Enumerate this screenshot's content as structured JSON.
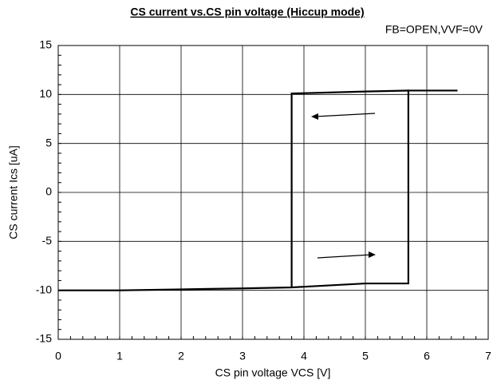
{
  "chart_data": {
    "type": "line",
    "title": "CS current vs.CS pin voltage (Hiccup mode)",
    "subtitle": "FB=OPEN,VVF=0V",
    "x_label": "CS pin voltage VCS [V]",
    "y_label": "CS current Ics [uA]",
    "x": [
      0,
      1,
      2,
      3,
      3.8,
      3.8,
      5,
      5.7,
      5.7,
      5,
      3.8,
      5.7,
      5.7,
      6.5
    ],
    "series": [
      {
        "color": "#000000",
        "values": [
          -10,
          -10,
          -9.9,
          -9.8,
          -9.7,
          10.1,
          10.3,
          10.4,
          -9.3,
          -9.3,
          -9.7,
          null,
          10.4,
          10.4
        ]
      }
    ],
    "xlim": [
      0,
      7
    ],
    "xticks": [
      0,
      1,
      2,
      3,
      4,
      5,
      6,
      7
    ],
    "ylim": [
      -15,
      15
    ],
    "yticks": [
      -15,
      -10,
      -5,
      0,
      5,
      10,
      15
    ],
    "grid": true
  }
}
